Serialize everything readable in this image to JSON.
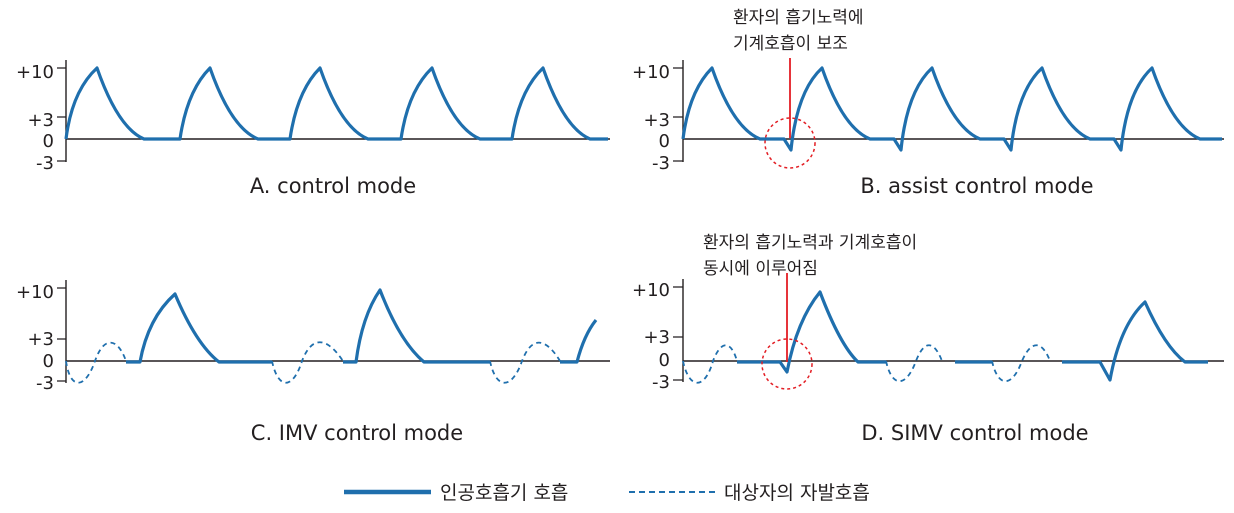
{
  "colors": {
    "mechanical": "#1f6fad",
    "spontaneous": "#1f6fad",
    "highlight": "#e31e24",
    "axis": "#231f20"
  },
  "y_ticks": [
    "+10",
    "+3",
    "0",
    "-3"
  ],
  "panels": {
    "a": {
      "caption": "A. control mode"
    },
    "b": {
      "caption": "B. assist control mode",
      "note_line1": "환자의 흡기노력에",
      "note_line2": "기계호흡이 보조"
    },
    "c": {
      "caption": "C. IMV control mode"
    },
    "d": {
      "caption": "D. SIMV control mode",
      "note_line1": "환자의 흡기노력과 기계호흡이",
      "note_line2": "동시에 이루어짐"
    }
  },
  "legend": {
    "mechanical_label": "인공호흡기 호흡",
    "spontaneous_label": "대상자의 자발호흡"
  }
}
